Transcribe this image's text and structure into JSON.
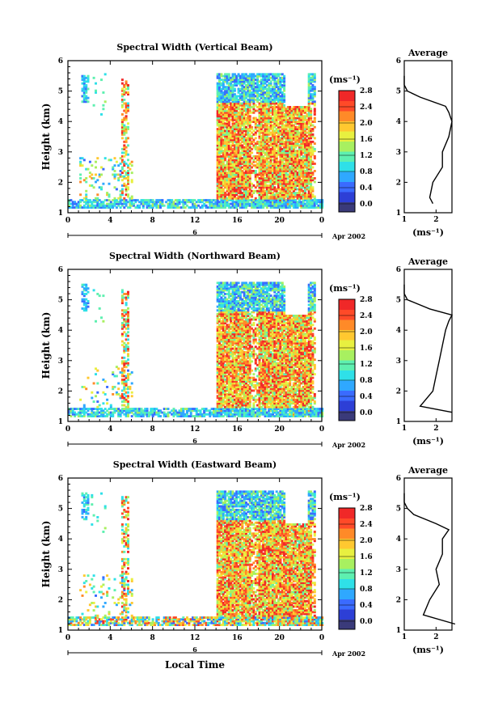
{
  "x_axis_label": "Local Time",
  "panels": [
    {
      "title": "Spectral Width (Vertical Beam)",
      "ylabel": "Height (km)",
      "cb_unit": "(ms⁻¹)",
      "avg_title": "Average",
      "avg_xlabel": "(ms⁻¹)",
      "date_day": "6",
      "date_label": "Apr 2002"
    },
    {
      "title": "Spectral Width (Northward Beam)",
      "ylabel": "Height (km)",
      "cb_unit": "(ms⁻¹)",
      "avg_title": "Average",
      "avg_xlabel": "(ms⁻¹)",
      "date_day": "6",
      "date_label": "Apr 2002"
    },
    {
      "title": "Spectral Width (Eastward Beam)",
      "ylabel": "Height (km)",
      "cb_unit": "(ms⁻¹)",
      "avg_title": "Average",
      "avg_xlabel": "(ms⁻¹)",
      "date_day": "6",
      "date_label": "Apr 2002"
    }
  ],
  "chart_data": {
    "type": "heatmap",
    "x_ticks": [
      "0",
      "4",
      "8",
      "12",
      "16",
      "20",
      "0"
    ],
    "y_ticks": [
      "1",
      "2",
      "3",
      "4",
      "5",
      "6"
    ],
    "xlim": [
      0,
      24
    ],
    "ylim": [
      1,
      6
    ],
    "colorbar_ticks": [
      [
        "0.0",
        "0.4",
        "0.8",
        "1.2",
        "1.6",
        "2.0",
        "2.4",
        "2.8"
      ],
      [
        "0.0",
        "0.4",
        "0.8",
        "1.2",
        "1.6",
        "2.0",
        "2.4",
        "2.8"
      ],
      [
        "0.0",
        "0.4",
        "0.8",
        "1.2",
        "1.6",
        "2.0",
        "2.4",
        "2.8"
      ]
    ],
    "colorbar_range": [
      0,
      3
    ],
    "colormap": [
      "#3a3a7a",
      "#2d3fd6",
      "#3a6bff",
      "#2fa8ff",
      "#2fe0e8",
      "#5ef0b0",
      "#a8f060",
      "#e8f040",
      "#ffc830",
      "#ff8a28",
      "#ff4a28",
      "#f02828"
    ],
    "average_profile_xticks": [
      [
        "1",
        "2"
      ],
      [
        "1",
        "2"
      ],
      [
        "1",
        "2"
      ]
    ],
    "average_profile_xlim": [
      1,
      2.5
    ],
    "average_profiles": [
      {
        "height": [
          1.3,
          1.5,
          2.0,
          2.5,
          3.0,
          3.5,
          4.0,
          4.3,
          4.5,
          4.8,
          5.0,
          5.2,
          5.4,
          5.5
        ],
        "width": [
          1.9,
          1.8,
          1.9,
          2.2,
          2.2,
          2.4,
          2.5,
          2.4,
          2.3,
          1.5,
          1.1,
          1.0,
          1.0,
          1.0
        ]
      },
      {
        "height": [
          1.3,
          1.5,
          2.0,
          2.5,
          3.0,
          3.5,
          4.0,
          4.3,
          4.5,
          4.7,
          5.0,
          5.2,
          5.4,
          5.5
        ],
        "width": [
          2.5,
          1.5,
          1.9,
          2.0,
          2.1,
          2.2,
          2.3,
          2.4,
          2.5,
          1.8,
          1.1,
          1.0,
          1.0,
          1.0
        ]
      },
      {
        "height": [
          1.2,
          1.5,
          2.0,
          2.5,
          3.0,
          3.5,
          4.0,
          4.3,
          4.5,
          4.8,
          5.0,
          5.2,
          5.4,
          5.5
        ],
        "width": [
          2.6,
          1.6,
          1.8,
          2.1,
          2.0,
          2.2,
          2.2,
          2.4,
          2.0,
          1.3,
          1.1,
          1.0,
          1.0,
          1.0
        ]
      }
    ]
  }
}
